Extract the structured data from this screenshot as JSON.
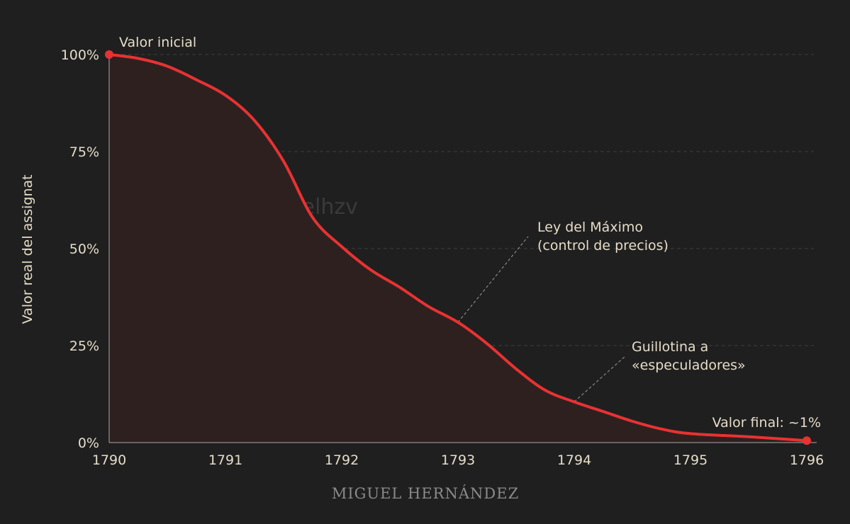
{
  "chart_data": {
    "type": "area",
    "title": "",
    "xlabel": "",
    "ylabel": "Valor real del assignat",
    "xlim": [
      1790,
      1796
    ],
    "ylim": [
      0,
      100
    ],
    "x_ticks": [
      "1790",
      "1791",
      "1792",
      "1793",
      "1794",
      "1795",
      "1796"
    ],
    "y_ticks": [
      "0%",
      "25%",
      "50%",
      "75%",
      "100%"
    ],
    "grid": "horizontal dashed",
    "series": [
      {
        "x": [
          1790,
          1790.25,
          1790.5,
          1790.75,
          1791,
          1791.25,
          1791.5,
          1791.75,
          1792,
          1792.25,
          1792.5,
          1792.75,
          1793,
          1793.25,
          1793.5,
          1793.75,
          1794,
          1794.25,
          1794.5,
          1794.75,
          1795,
          1795.5,
          1796
        ],
        "y": [
          100,
          99,
          97,
          93.5,
          89.5,
          83,
          72.5,
          58,
          50.5,
          44.5,
          40,
          35,
          31,
          25.5,
          19,
          13.5,
          10.5,
          8,
          5.5,
          3.5,
          2.3,
          1.5,
          0.5
        ]
      }
    ],
    "colors": {
      "line": "#e83232",
      "fill": "#2f2020",
      "background": "#1f1f1f",
      "text": "#e6dcc8"
    },
    "annotations": [
      {
        "id": "start",
        "label_lines": [
          "Valor inicial"
        ],
        "x": 1790,
        "y": 100,
        "marker": true
      },
      {
        "id": "maximum",
        "label_lines": [
          "Ley del Máximo",
          "(control de precios)"
        ],
        "x": 1793,
        "y": 31
      },
      {
        "id": "guillotine",
        "label_lines": [
          "Guillotina a",
          "«especuladores»"
        ],
        "x": 1794,
        "y": 10.5
      },
      {
        "id": "end",
        "label_lines": [
          "Valor final: ~1%"
        ],
        "x": 1796,
        "y": 0.5,
        "marker": true
      }
    ]
  },
  "watermark": "@miguelhzv",
  "signature": "MIGUEL HERNÁNDEZ"
}
